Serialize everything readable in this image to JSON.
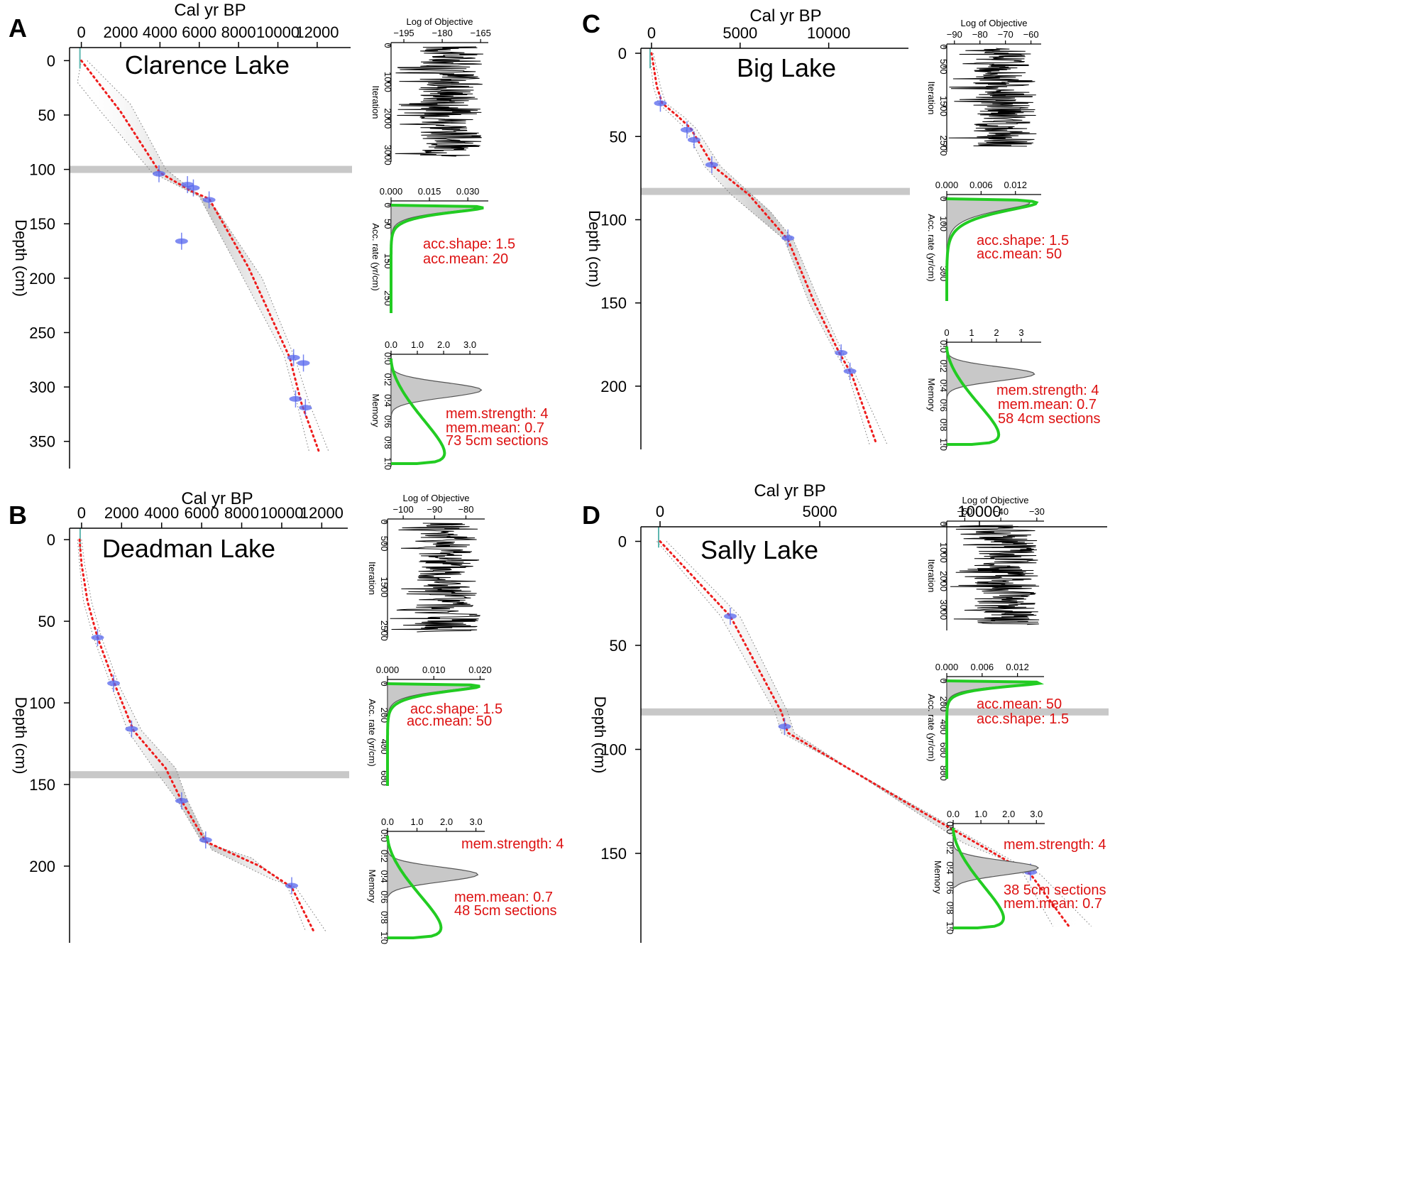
{
  "chart_data": [
    {
      "id": "A",
      "type": "line",
      "panel_letter": "A",
      "title": "Clarence Lake",
      "xlabel": "Cal yr BP",
      "ylabel": "Depth (cm)",
      "xlim": [
        -600,
        13700
      ],
      "ylim": [
        -12,
        375
      ],
      "xticks": [
        0,
        2000,
        4000,
        6000,
        8000,
        10000,
        12000
      ],
      "xtick_labels": [
        "0",
        "2000",
        "4000",
        "6000",
        "8000",
        "10000",
        "12000"
      ],
      "yticks": [
        0,
        50,
        100,
        150,
        200,
        250,
        300,
        350
      ],
      "ytick_labels": [
        "0",
        "50",
        "100",
        "150",
        "200",
        "250",
        "300",
        "350"
      ],
      "hiatus_depth": 100,
      "age_model": [
        [
          0,
          0
        ],
        [
          2000,
          47
        ],
        [
          4000,
          103
        ],
        [
          5600,
          120
        ],
        [
          6500,
          127
        ],
        [
          8500,
          190
        ],
        [
          10600,
          273
        ],
        [
          11200,
          315
        ],
        [
          12100,
          360
        ]
      ],
      "envelope_upper": [
        [
          0,
          0
        ],
        [
          -200,
          20
        ],
        [
          1000,
          47
        ],
        [
          3600,
          103
        ],
        [
          6000,
          125
        ],
        [
          7800,
          185
        ],
        [
          10300,
          270
        ],
        [
          10900,
          310
        ],
        [
          11600,
          360
        ]
      ],
      "envelope_lower": [
        [
          300,
          0
        ],
        [
          2500,
          40
        ],
        [
          4300,
          100
        ],
        [
          6800,
          135
        ],
        [
          9200,
          200
        ],
        [
          10900,
          275
        ],
        [
          11600,
          315
        ],
        [
          12600,
          360
        ]
      ],
      "dates": [
        [
          3950,
          104
        ],
        [
          5400,
          114
        ],
        [
          5700,
          117
        ],
        [
          6500,
          128
        ],
        [
          5100,
          166
        ],
        [
          10800,
          273
        ],
        [
          11300,
          278
        ],
        [
          10900,
          311
        ],
        [
          11400,
          319
        ]
      ],
      "diagnostics": {
        "objective": {
          "label": "Log of Objective",
          "ylabel": "Iteration",
          "xlim": [
            -200,
            -162
          ],
          "xticks": [
            -195,
            -180,
            -165
          ],
          "xtick_labels": [
            "−195",
            "−180",
            "−165"
          ],
          "yticks": [
            0,
            1000,
            2000,
            3000
          ],
          "ytick_labels": [
            "0",
            "1000",
            "2000",
            "3000"
          ],
          "iterations": 3000
        },
        "accrate": {
          "ylabel": "Acc. rate (yr/cm)",
          "xlim": [
            0,
            0.038
          ],
          "xticks": [
            0,
            0.015,
            0.03
          ],
          "xtick_labels": [
            "0.000",
            "0.015",
            "0.030"
          ],
          "ylim": [
            0,
            290
          ],
          "yticks": [
            0,
            50,
            150,
            250
          ],
          "ytick_labels": [
            "0",
            "50",
            "150",
            "250"
          ],
          "prior_shape": 1.5,
          "prior_mean": 20,
          "annotations": [
            "acc.shape:  1.5",
            "acc.mean:  20"
          ]
        },
        "memory": {
          "ylabel": "Memory",
          "xlim": [
            0,
            3.7
          ],
          "xticks": [
            0,
            1,
            2,
            3
          ],
          "xtick_labels": [
            "0.0",
            "1.0",
            "2.0",
            "3.0"
          ],
          "yticks": [
            0,
            0.2,
            0.4,
            0.6,
            0.8,
            1.0
          ],
          "ytick_labels": [
            "0.0",
            "0.2",
            "0.4",
            "0.6",
            "0.8",
            "1.0"
          ],
          "prior_strength": 4,
          "prior_mean": 0.7,
          "posterior_peak": 0.3,
          "annotations": [
            "mem.strength: 4",
            "mem.mean: 0.7",
            "73 5cm sections"
          ]
        }
      }
    },
    {
      "id": "B",
      "type": "line",
      "panel_letter": "B",
      "title": "Deadman Lake",
      "xlabel": "Cal yr BP",
      "ylabel": "Depth (cm)",
      "xlim": [
        -600,
        13300
      ],
      "ylim": [
        -7,
        247
      ],
      "xticks": [
        0,
        2000,
        4000,
        6000,
        8000,
        10000,
        12000
      ],
      "xtick_labels": [
        "0",
        "2000",
        "4000",
        "6000",
        "8000",
        "10000",
        "12000"
      ],
      "yticks": [
        0,
        50,
        100,
        150,
        200
      ],
      "ytick_labels": [
        "0",
        "50",
        "100",
        "150",
        "200"
      ],
      "hiatus_depth": 144,
      "age_model": [
        [
          -100,
          0
        ],
        [
          0,
          15
        ],
        [
          300,
          38
        ],
        [
          800,
          60
        ],
        [
          1700,
          90
        ],
        [
          2600,
          117
        ],
        [
          4200,
          140
        ],
        [
          5000,
          160
        ],
        [
          6200,
          185
        ],
        [
          8900,
          200
        ],
        [
          10500,
          213
        ],
        [
          11600,
          240
        ]
      ],
      "envelope_upper": [
        [
          -200,
          0
        ],
        [
          -100,
          15
        ],
        [
          100,
          38
        ],
        [
          600,
          60
        ],
        [
          1500,
          90
        ],
        [
          2300,
          117
        ],
        [
          3600,
          140
        ],
        [
          4800,
          160
        ],
        [
          6000,
          185
        ],
        [
          8500,
          195
        ],
        [
          10300,
          213
        ],
        [
          11200,
          240
        ]
      ],
      "envelope_lower": [
        [
          0,
          0
        ],
        [
          150,
          15
        ],
        [
          500,
          38
        ],
        [
          1000,
          60
        ],
        [
          1900,
          90
        ],
        [
          3000,
          117
        ],
        [
          4700,
          140
        ],
        [
          5300,
          160
        ],
        [
          6500,
          190
        ],
        [
          9500,
          208
        ],
        [
          10700,
          213
        ],
        [
          12200,
          240
        ]
      ],
      "dates": [
        [
          800,
          60
        ],
        [
          1600,
          88
        ],
        [
          2500,
          116
        ],
        [
          5000,
          160
        ],
        [
          6200,
          184
        ],
        [
          10500,
          212
        ]
      ],
      "diagnostics": {
        "objective": {
          "label": "Log of Objective",
          "ylabel": "Iteration",
          "xlim": [
            -105,
            -74
          ],
          "xticks": [
            -100,
            -90,
            -80
          ],
          "xtick_labels": [
            "−100",
            "−90",
            "−80"
          ],
          "yticks": [
            0,
            500,
            1500,
            2500
          ],
          "ytick_labels": [
            "0",
            "500",
            "1500",
            "2500"
          ],
          "iterations": 2500
        },
        "accrate": {
          "ylabel": "Acc. rate (yr/cm)",
          "xlim": [
            0,
            0.021
          ],
          "xticks": [
            0,
            0.01,
            0.02
          ],
          "xtick_labels": [
            "0.000",
            "0.010",
            "0.020"
          ],
          "ylim": [
            0,
            650
          ],
          "yticks": [
            0,
            200,
            400,
            600
          ],
          "ytick_labels": [
            "0",
            "200",
            "400",
            "600"
          ],
          "prior_shape": 1.5,
          "prior_mean": 50,
          "annotations": [
            "acc.shape:  1.5",
            "acc.mean:  50"
          ]
        },
        "memory": {
          "ylabel": "Memory",
          "xlim": [
            0,
            3.3
          ],
          "xticks": [
            0,
            1,
            2,
            3
          ],
          "xtick_labels": [
            "0.0",
            "1.0",
            "2.0",
            "3.0"
          ],
          "yticks": [
            0,
            0.2,
            0.4,
            0.6,
            0.8,
            1.0
          ],
          "ytick_labels": [
            "0.0",
            "0.2",
            "0.4",
            "0.6",
            "0.8",
            "1.0"
          ],
          "prior_strength": 4,
          "prior_mean": 0.7,
          "posterior_peak": 0.38,
          "annotations": [
            "mem.strength: 4",
            "mem.mean: 0.7",
            "48 5cm sections"
          ]
        }
      }
    },
    {
      "id": "C",
      "type": "line",
      "panel_letter": "C",
      "title": "Big Lake",
      "xlabel": "Cal yr BP",
      "ylabel": "Depth (cm)",
      "xlim": [
        -600,
        14500
      ],
      "ylim": [
        -3,
        238
      ],
      "xticks": [
        0,
        5000,
        10000
      ],
      "xtick_labels": [
        "0",
        "5000",
        "10000"
      ],
      "yticks": [
        0,
        50,
        100,
        150,
        200
      ],
      "ytick_labels": [
        "0",
        "50",
        "100",
        "150",
        "200"
      ],
      "hiatus_depth": 83,
      "age_model": [
        [
          0,
          0
        ],
        [
          300,
          20
        ],
        [
          600,
          30
        ],
        [
          1500,
          38
        ],
        [
          2200,
          45
        ],
        [
          3500,
          68
        ],
        [
          5500,
          85
        ],
        [
          7700,
          112
        ],
        [
          9200,
          150
        ],
        [
          10600,
          180
        ],
        [
          11300,
          193
        ],
        [
          12700,
          235
        ]
      ],
      "envelope_upper": [
        [
          -100,
          0
        ],
        [
          100,
          20
        ],
        [
          400,
          30
        ],
        [
          1200,
          38
        ],
        [
          1900,
          45
        ],
        [
          3000,
          68
        ],
        [
          4500,
          85
        ],
        [
          7500,
          112
        ],
        [
          8900,
          150
        ],
        [
          10400,
          180
        ],
        [
          11100,
          193
        ],
        [
          12300,
          235
        ]
      ],
      "envelope_lower": [
        [
          100,
          0
        ],
        [
          500,
          20
        ],
        [
          800,
          30
        ],
        [
          1800,
          38
        ],
        [
          2500,
          45
        ],
        [
          3900,
          68
        ],
        [
          6700,
          95
        ],
        [
          8000,
          112
        ],
        [
          9500,
          150
        ],
        [
          10800,
          180
        ],
        [
          11500,
          193
        ],
        [
          13300,
          235
        ]
      ],
      "dates": [
        [
          500,
          30
        ],
        [
          2000,
          46
        ],
        [
          2400,
          52
        ],
        [
          3400,
          67
        ],
        [
          7700,
          111
        ],
        [
          10700,
          180
        ],
        [
          11200,
          191
        ]
      ],
      "diagnostics": {
        "objective": {
          "label": "Log of Objective",
          "ylabel": "Iteration",
          "xlim": [
            -93,
            -56
          ],
          "xticks": [
            -90,
            -80,
            -70,
            -60
          ],
          "xtick_labels": [
            "−90",
            "−80",
            "−70",
            "−60"
          ],
          "yticks": [
            0,
            500,
            1500,
            2500
          ],
          "ytick_labels": [
            "0",
            "500",
            "1500",
            "2500"
          ],
          "iterations": 2500
        },
        "accrate": {
          "ylabel": "Acc. rate (yr/cm)",
          "xlim": [
            0,
            0.0165
          ],
          "xticks": [
            0,
            0.006,
            0.012
          ],
          "xtick_labels": [
            "0.000",
            "0.006",
            "0.012"
          ],
          "ylim": [
            0,
            410
          ],
          "yticks": [
            0,
            100,
            300
          ],
          "ytick_labels": [
            "0",
            "100",
            "300"
          ],
          "prior_shape": 1.5,
          "prior_mean": 50,
          "annotations": [
            "acc.shape:  1.5",
            "acc.mean:  50"
          ]
        },
        "memory": {
          "ylabel": "Memory",
          "xlim": [
            0,
            3.8
          ],
          "xticks": [
            0,
            1,
            2,
            3
          ],
          "xtick_labels": [
            "0",
            "1",
            "2",
            "3"
          ],
          "yticks": [
            0,
            0.2,
            0.4,
            0.6,
            0.8,
            1.0
          ],
          "ytick_labels": [
            "0.0",
            "0.2",
            "0.4",
            "0.6",
            "0.8",
            "1.0"
          ],
          "prior_strength": 4,
          "prior_mean": 0.7,
          "posterior_peak": 0.28,
          "annotations": [
            "mem.strength: 4",
            "mem.mean: 0.7",
            "58 4cm sections"
          ]
        }
      }
    },
    {
      "id": "D",
      "type": "line",
      "panel_letter": "D",
      "title": "Sally Lake",
      "xlabel": "Cal yr BP",
      "ylabel": "Depth (cm)",
      "xlim": [
        -600,
        14000
      ],
      "ylim": [
        -7,
        193
      ],
      "xticks": [
        0,
        5000,
        10000
      ],
      "xtick_labels": [
        "0",
        "5000",
        "10000"
      ],
      "yticks": [
        0,
        50,
        100,
        150
      ],
      "ytick_labels": [
        "0",
        "50",
        "100",
        "150"
      ],
      "hiatus_depth": 82,
      "age_model": [
        [
          0,
          0
        ],
        [
          2200,
          36
        ],
        [
          3800,
          82
        ],
        [
          4000,
          92
        ],
        [
          8200,
          130
        ],
        [
          11600,
          160
        ],
        [
          12800,
          185
        ]
      ],
      "envelope_upper": [
        [
          -100,
          0
        ],
        [
          1900,
          36
        ],
        [
          3600,
          82
        ],
        [
          3800,
          92
        ],
        [
          6000,
          110
        ],
        [
          11200,
          155
        ],
        [
          12300,
          185
        ]
      ],
      "envelope_lower": [
        [
          200,
          0
        ],
        [
          2500,
          36
        ],
        [
          4000,
          82
        ],
        [
          4200,
          92
        ],
        [
          9500,
          145
        ],
        [
          11900,
          160
        ],
        [
          13500,
          185
        ]
      ],
      "dates": [
        [
          2200,
          36
        ],
        [
          3900,
          89
        ],
        [
          11600,
          159
        ]
      ],
      "diagnostics": {
        "objective": {
          "label": "Log of Objective",
          "ylabel": "Iteration",
          "xlim": [
            -55,
            -28
          ],
          "xticks": [
            -50,
            -40,
            -30
          ],
          "xtick_labels": [
            "−50",
            "−40",
            "−30"
          ],
          "yticks": [
            0,
            1000,
            2000,
            3000
          ],
          "ytick_labels": [
            "0",
            "1000",
            "2000",
            "3000"
          ],
          "iterations": 3500
        },
        "accrate": {
          "ylabel": "Acc. rate (yr/cm)",
          "xlim": [
            0,
            0.0165
          ],
          "xticks": [
            0,
            0.006,
            0.012
          ],
          "xtick_labels": [
            "0.000",
            "0.006",
            "0.012"
          ],
          "ylim": [
            0,
            850
          ],
          "yticks": [
            0,
            200,
            400,
            600,
            800
          ],
          "ytick_labels": [
            "0",
            "200",
            "400",
            "600",
            "800"
          ],
          "prior_shape": 1.5,
          "prior_mean": 50,
          "annotations": [
            "acc.mean:  50",
            "acc.shape:  1.5"
          ]
        },
        "memory": {
          "ylabel": "Memory",
          "xlim": [
            0,
            3.3
          ],
          "xticks": [
            0,
            1,
            2,
            3
          ],
          "xtick_labels": [
            "0.0",
            "1.0",
            "2.0",
            "3.0"
          ],
          "yticks": [
            0,
            0.2,
            0.4,
            0.6,
            0.8,
            1.0
          ],
          "ytick_labels": [
            "0.0",
            "0.2",
            "0.4",
            "0.6",
            "0.8",
            "1.0"
          ],
          "prior_strength": 4,
          "prior_mean": 0.7,
          "posterior_peak": 0.4,
          "annotations": [
            "mem.strength: 4",
            "38 5cm sections",
            "mem.mean: 0.7"
          ]
        }
      }
    }
  ],
  "colors": {
    "age_model": "#ee1c1c",
    "envelope": "#777777",
    "dates": "#5566ee",
    "hiatus": "#c8c8c8",
    "prior": "#22cc22",
    "posterior_fill": "#c8c8c8",
    "annotation": "#dd1111",
    "axis": "#000000"
  }
}
